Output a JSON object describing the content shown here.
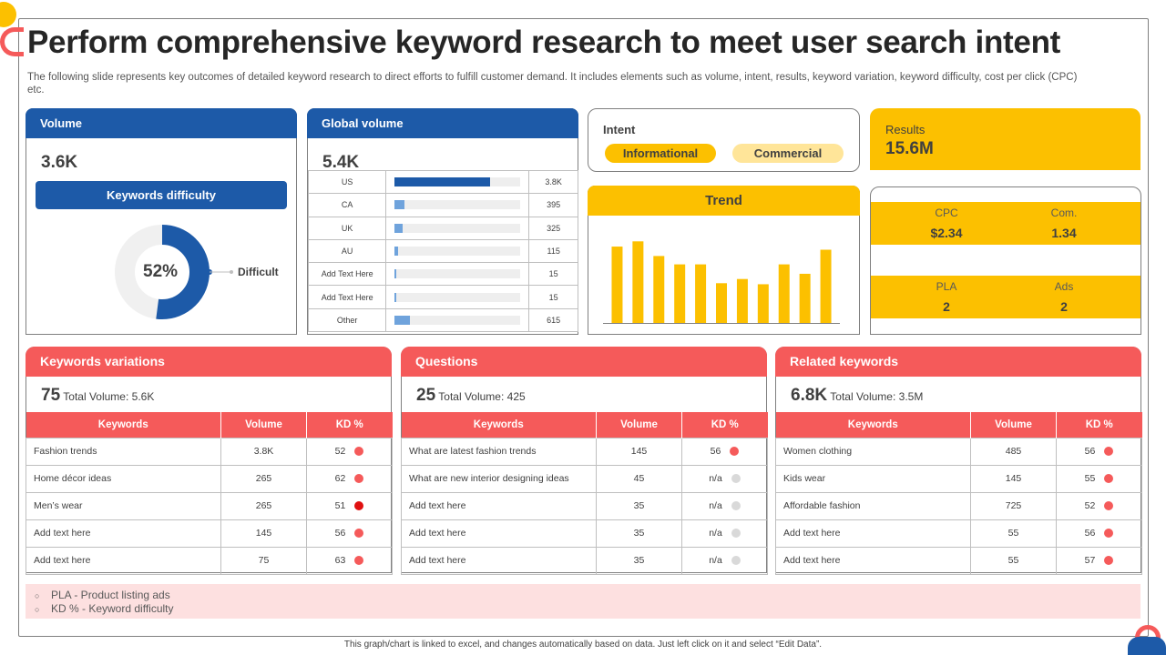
{
  "title": "Perform comprehensive keyword research to meet user search intent",
  "subtitle": "The following slide represents key outcomes of detailed keyword research to direct efforts to fulfill customer demand. It includes elements such as volume, intent, results, keyword variation, keyword difficulty, cost per click (CPC) etc.",
  "volume": {
    "label": "Volume",
    "value": "3.6K",
    "kd_label": "Keywords difficulty",
    "kd_percent_text": "52%",
    "kd_percent": 52,
    "kd_status": "Difficult"
  },
  "global_volume": {
    "label": "Global volume",
    "value": "5.4K",
    "rows": [
      {
        "country": "US",
        "value": "3.8K",
        "fill": 0.76,
        "color": "#1d5aa8"
      },
      {
        "country": "CA",
        "value": "395",
        "fill": 0.08,
        "color": "#6fa3dc"
      },
      {
        "country": "UK",
        "value": "325",
        "fill": 0.065,
        "color": "#6fa3dc"
      },
      {
        "country": "AU",
        "value": "115",
        "fill": 0.03,
        "color": "#6fa3dc"
      },
      {
        "country": "Add Text Here",
        "value": "15",
        "fill": 0.012,
        "color": "#6fa3dc"
      },
      {
        "country": "Add Text Here",
        "value": "15",
        "fill": 0.012,
        "color": "#6fa3dc"
      },
      {
        "country": "Other",
        "value": "615",
        "fill": 0.12,
        "color": "#6fa3dc"
      }
    ]
  },
  "intent": {
    "label": "Intent",
    "tags": [
      "Informational",
      "Commercial"
    ]
  },
  "results": {
    "label": "Results",
    "value": "15.6M"
  },
  "trend": {
    "label": "Trend"
  },
  "chart_data": {
    "type": "bar",
    "title": "Trend",
    "values": [
      73,
      78,
      64,
      56,
      56,
      38,
      42,
      37,
      56,
      47,
      70
    ],
    "color": "#fcc000"
  },
  "metrics": {
    "cpc_label": "CPC",
    "cpc_value": "$2.34",
    "com_label": "Com.",
    "com_value": "1.34",
    "pla_label": "PLA",
    "pla_value": "2",
    "ads_label": "Ads",
    "ads_value": "2"
  },
  "columns": {
    "keywords": "Keywords",
    "volume": "Volume",
    "kd": "KD %"
  },
  "total_volume_label": "Total  Volume:",
  "variations": {
    "label": "Keywords variations",
    "count": "75",
    "total": "5.6K",
    "rows": [
      {
        "keyword": "Fashion trends",
        "volume": "3.8K",
        "kd": "52",
        "dot": "#f55a5a"
      },
      {
        "keyword": "Home décor ideas",
        "volume": "265",
        "kd": "62",
        "dot": "#f55a5a"
      },
      {
        "keyword": "Men’s wear",
        "volume": "265",
        "kd": "51",
        "dot": "#e01010"
      },
      {
        "keyword": "Add text here",
        "volume": "145",
        "kd": "56",
        "dot": "#f55a5a"
      },
      {
        "keyword": "Add text here",
        "volume": "75",
        "kd": "63",
        "dot": "#f55a5a"
      }
    ]
  },
  "questions": {
    "label": "Questions",
    "count": "25",
    "total": "425",
    "rows": [
      {
        "keyword": "What are latest fashion trends",
        "volume": "145",
        "kd": "56",
        "dot": "#f55a5a"
      },
      {
        "keyword": "What are new interior designing ideas",
        "volume": "45",
        "kd": "n/a",
        "dot": "#d9d9d9"
      },
      {
        "keyword": "Add text here",
        "volume": "35",
        "kd": "n/a",
        "dot": "#d9d9d9"
      },
      {
        "keyword": "Add text here",
        "volume": "35",
        "kd": "n/a",
        "dot": "#d9d9d9"
      },
      {
        "keyword": "Add text here",
        "volume": "35",
        "kd": "n/a",
        "dot": "#d9d9d9"
      }
    ]
  },
  "related": {
    "label": "Related keywords",
    "count": "6.8K",
    "total": "3.5M",
    "rows": [
      {
        "keyword": "Women clothing",
        "volume": "485",
        "kd": "56",
        "dot": "#f55a5a"
      },
      {
        "keyword": "Kids wear",
        "volume": "145",
        "kd": "55",
        "dot": "#f55a5a"
      },
      {
        "keyword": "Affordable fashion",
        "volume": "725",
        "kd": "52",
        "dot": "#f55a5a"
      },
      {
        "keyword": "Add text here",
        "volume": "55",
        "kd": "56",
        "dot": "#f55a5a"
      },
      {
        "keyword": "Add text here",
        "volume": "55",
        "kd": "57",
        "dot": "#f55a5a"
      }
    ]
  },
  "notes": [
    "PLA - Product listing ads",
    "KD % - Keyword difficulty"
  ],
  "footer": "This graph/chart is linked to excel, and changes automatically based on data. Just left click on it and select “Edit Data”."
}
